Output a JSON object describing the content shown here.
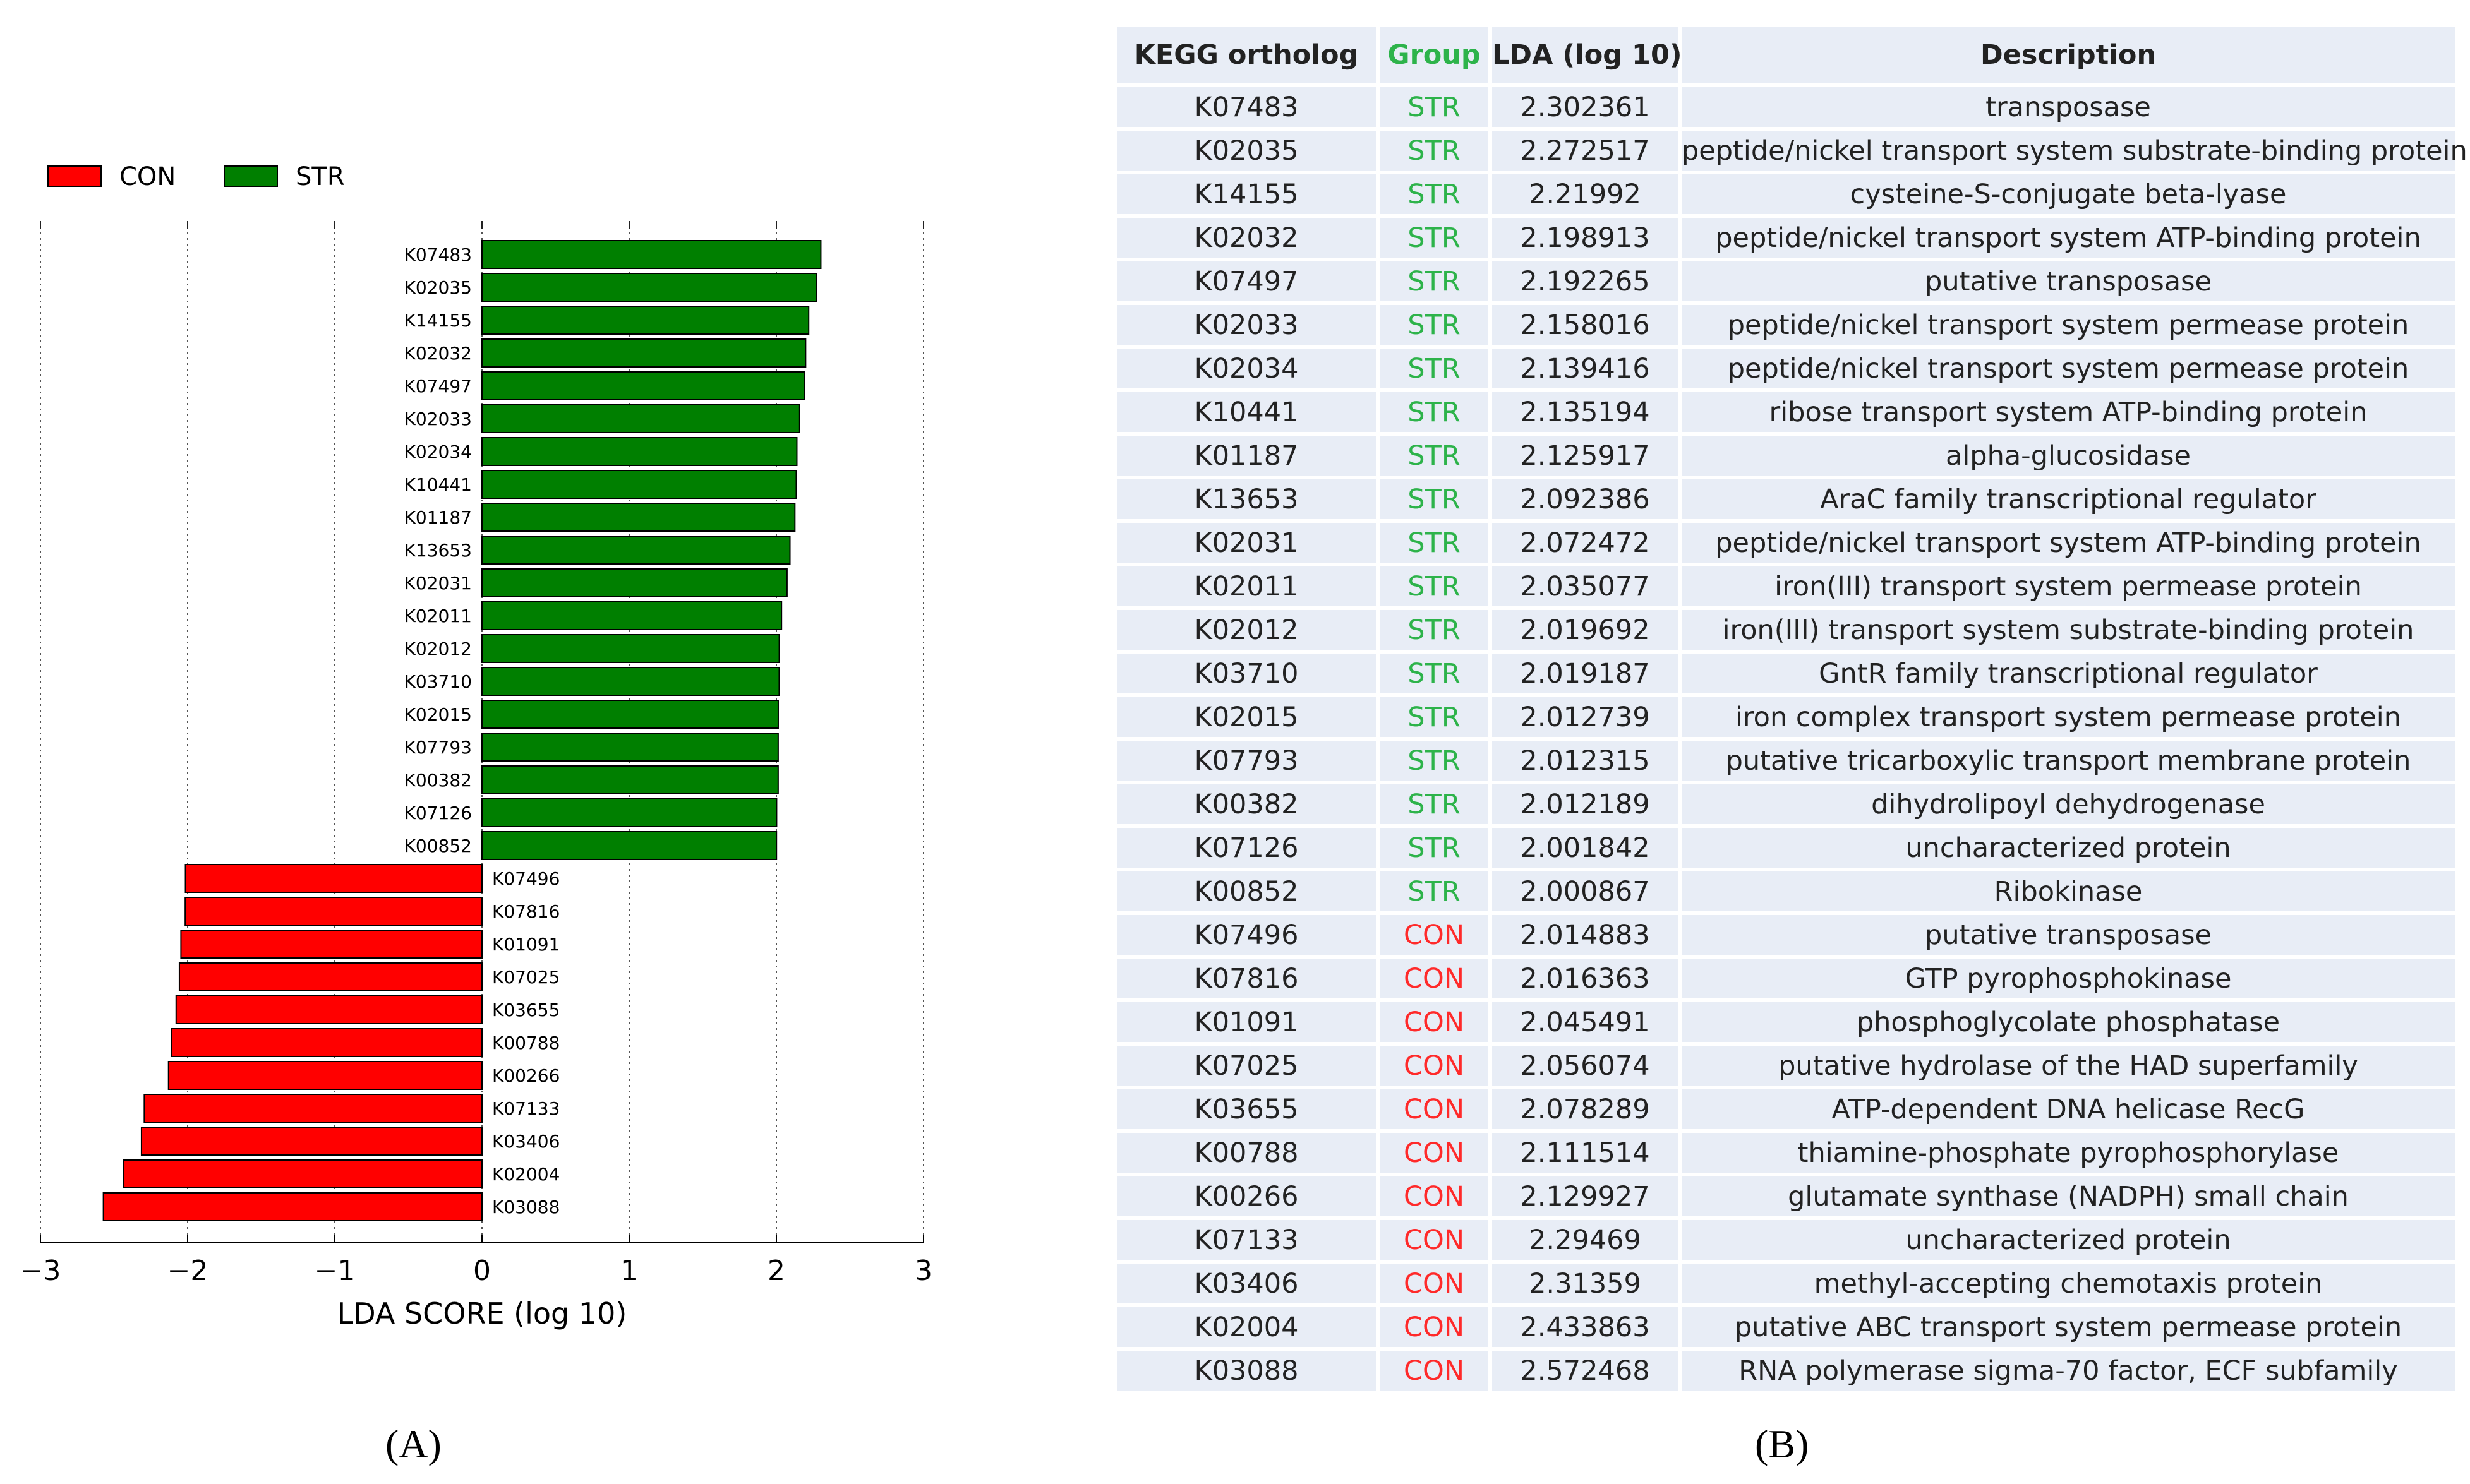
{
  "chart_data": {
    "type": "bar",
    "orientation": "horizontal",
    "xlabel": "LDA SCORE (log 10)",
    "xlim": [
      -3,
      3
    ],
    "xticks": [
      "−3",
      "−2",
      "−1",
      "0",
      "1",
      "2",
      "3"
    ],
    "legend": [
      {
        "name": "CON",
        "color": "#ff0000"
      },
      {
        "name": "STR",
        "color": "#007f00"
      }
    ],
    "legend_position": "top-left",
    "categories": [
      "K07483",
      "K02035",
      "K14155",
      "K02032",
      "K07497",
      "K02033",
      "K02034",
      "K10441",
      "K01187",
      "K13653",
      "K02031",
      "K02011",
      "K02012",
      "K03710",
      "K02015",
      "K07793",
      "K00382",
      "K07126",
      "K00852",
      "K07496",
      "K07816",
      "K01091",
      "K07025",
      "K03655",
      "K00788",
      "K00266",
      "K07133",
      "K03406",
      "K02004",
      "K03088"
    ],
    "values": [
      2.302361,
      2.272517,
      2.21992,
      2.198913,
      2.192265,
      2.158016,
      2.139416,
      2.135194,
      2.125917,
      2.092386,
      2.072472,
      2.035077,
      2.019692,
      2.019187,
      2.012739,
      2.012315,
      2.012189,
      2.001842,
      2.000867,
      -2.014883,
      -2.016363,
      -2.045491,
      -2.056074,
      -2.078289,
      -2.111514,
      -2.129927,
      -2.29469,
      -2.31359,
      -2.433863,
      -2.572468
    ],
    "groups": [
      "STR",
      "STR",
      "STR",
      "STR",
      "STR",
      "STR",
      "STR",
      "STR",
      "STR",
      "STR",
      "STR",
      "STR",
      "STR",
      "STR",
      "STR",
      "STR",
      "STR",
      "STR",
      "STR",
      "CON",
      "CON",
      "CON",
      "CON",
      "CON",
      "CON",
      "CON",
      "CON",
      "CON",
      "CON",
      "CON"
    ]
  },
  "panel_labels": {
    "a": "(A)",
    "b": "(B)"
  },
  "table": {
    "headers": {
      "ko": "KEGG ortholog",
      "group": "Group",
      "lda": "LDA (log 10)",
      "desc": "Description"
    },
    "rows": [
      {
        "ko": "K07483",
        "group": "STR",
        "lda": "2.302361",
        "desc": "transposase"
      },
      {
        "ko": "K02035",
        "group": "STR",
        "lda": "2.272517",
        "desc": "peptide/nickel transport system substrate-binding protein"
      },
      {
        "ko": "K14155",
        "group": "STR",
        "lda": "2.21992",
        "desc": "cysteine-S-conjugate beta-lyase"
      },
      {
        "ko": "K02032",
        "group": "STR",
        "lda": "2.198913",
        "desc": "peptide/nickel transport system ATP-binding protein"
      },
      {
        "ko": "K07497",
        "group": "STR",
        "lda": "2.192265",
        "desc": "putative transposase"
      },
      {
        "ko": "K02033",
        "group": "STR",
        "lda": "2.158016",
        "desc": "peptide/nickel transport system permease protein"
      },
      {
        "ko": "K02034",
        "group": "STR",
        "lda": "2.139416",
        "desc": "peptide/nickel transport system permease protein"
      },
      {
        "ko": "K10441",
        "group": "STR",
        "lda": "2.135194",
        "desc": "ribose transport system ATP-binding protein"
      },
      {
        "ko": "K01187",
        "group": "STR",
        "lda": "2.125917",
        "desc": "alpha-glucosidase"
      },
      {
        "ko": "K13653",
        "group": "STR",
        "lda": "2.092386",
        "desc": "AraC family transcriptional regulator"
      },
      {
        "ko": "K02031",
        "group": "STR",
        "lda": "2.072472",
        "desc": "peptide/nickel transport system ATP-binding protein"
      },
      {
        "ko": "K02011",
        "group": "STR",
        "lda": "2.035077",
        "desc": "iron(III) transport system permease protein"
      },
      {
        "ko": "K02012",
        "group": "STR",
        "lda": "2.019692",
        "desc": "iron(III) transport system substrate-binding protein"
      },
      {
        "ko": "K03710",
        "group": "STR",
        "lda": "2.019187",
        "desc": "GntR family transcriptional regulator"
      },
      {
        "ko": "K02015",
        "group": "STR",
        "lda": "2.012739",
        "desc": "iron complex transport system permease protein"
      },
      {
        "ko": "K07793",
        "group": "STR",
        "lda": "2.012315",
        "desc": "putative tricarboxylic transport membrane protein"
      },
      {
        "ko": "K00382",
        "group": "STR",
        "lda": "2.012189",
        "desc": "dihydrolipoyl dehydrogenase"
      },
      {
        "ko": "K07126",
        "group": "STR",
        "lda": "2.001842",
        "desc": "uncharacterized protein"
      },
      {
        "ko": "K00852",
        "group": "STR",
        "lda": "2.000867",
        "desc": "Ribokinase"
      },
      {
        "ko": "K07496",
        "group": "CON",
        "lda": "2.014883",
        "desc": "putative transposase"
      },
      {
        "ko": "K07816",
        "group": "CON",
        "lda": "2.016363",
        "desc": "GTP pyrophosphokinase"
      },
      {
        "ko": "K01091",
        "group": "CON",
        "lda": "2.045491",
        "desc": "phosphoglycolate phosphatase"
      },
      {
        "ko": "K07025",
        "group": "CON",
        "lda": "2.056074",
        "desc": "putative hydrolase of the HAD superfamily"
      },
      {
        "ko": "K03655",
        "group": "CON",
        "lda": "2.078289",
        "desc": "ATP-dependent DNA helicase RecG"
      },
      {
        "ko": "K00788",
        "group": "CON",
        "lda": "2.111514",
        "desc": "thiamine-phosphate pyrophosphorylase"
      },
      {
        "ko": "K00266",
        "group": "CON",
        "lda": "2.129927",
        "desc": "glutamate synthase (NADPH) small chain"
      },
      {
        "ko": "K07133",
        "group": "CON",
        "lda": "2.29469",
        "desc": "uncharacterized protein"
      },
      {
        "ko": "K03406",
        "group": "CON",
        "lda": "2.31359",
        "desc": "methyl-accepting chemotaxis protein"
      },
      {
        "ko": "K02004",
        "group": "CON",
        "lda": "2.433863",
        "desc": "putative ABC transport system permease protein"
      },
      {
        "ko": "K03088",
        "group": "CON",
        "lda": "2.572468",
        "desc": "RNA polymerase sigma-70 factor, ECF subfamily"
      }
    ]
  }
}
